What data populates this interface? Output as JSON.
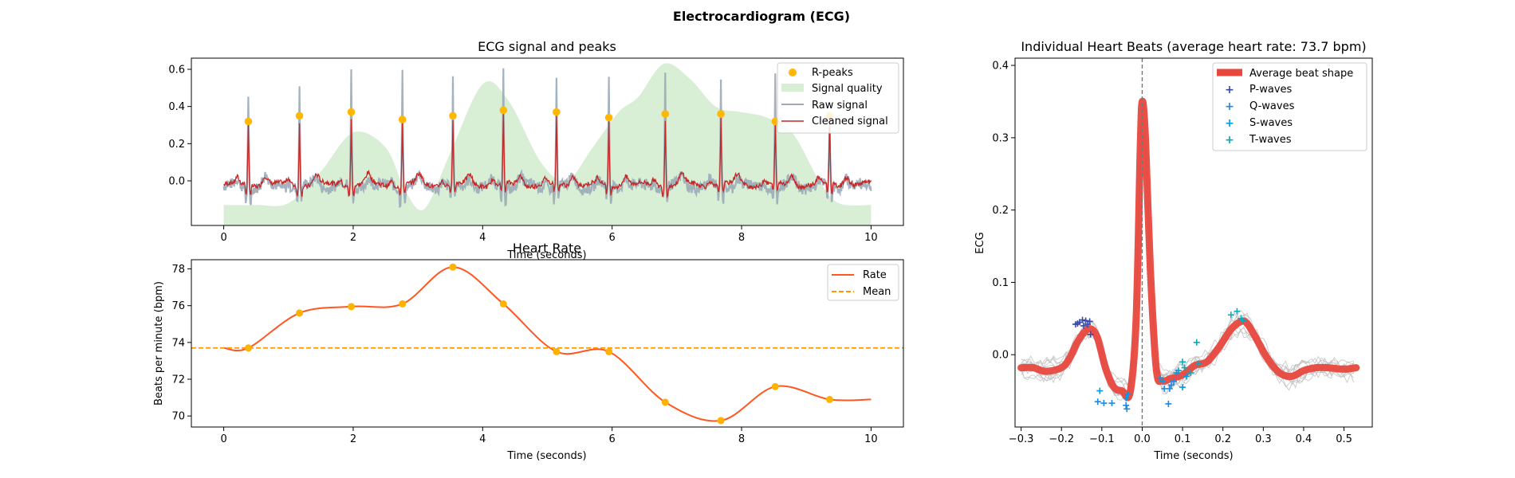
{
  "figure": {
    "suptitle": "Electrocardiogram (ECG)"
  },
  "colors": {
    "r_peaks": "#FFB703",
    "quality": "#D8EFD6",
    "raw": "#9BABB8",
    "cleaned": "#C62828",
    "rate": "#FF5722",
    "rate_peaks": "#FFB300",
    "mean": "#FF9800",
    "avg_beat": "#E8473E",
    "p_waves": "#3949AB",
    "q_waves": "#1E88E5",
    "s_waves": "#039BE5",
    "t_waves": "#00ACC1",
    "beats": "#BDBDBD"
  },
  "chart_data": [
    {
      "id": "ecg",
      "type": "line",
      "title": "ECG signal and peaks",
      "xlabel": "Time (seconds)",
      "ylabel": "",
      "xlim": [
        -0.5,
        10.5
      ],
      "ylim": [
        -0.24,
        0.66
      ],
      "xticks": [
        0,
        2,
        4,
        6,
        8,
        10
      ],
      "yticks": [
        0.0,
        0.2,
        0.4,
        0.6
      ],
      "ytick_labels": [
        "0.0",
        "0.2",
        "0.4",
        "0.6"
      ],
      "legend": [
        "R-peaks",
        "Signal quality",
        "Raw signal",
        "Cleaned signal"
      ],
      "legend_position": "upper right",
      "r_peaks": {
        "x": [
          0.38,
          1.17,
          1.97,
          2.76,
          3.54,
          4.32,
          5.14,
          5.95,
          6.82,
          7.68,
          8.52,
          9.36
        ],
        "y": [
          0.32,
          0.35,
          0.37,
          0.33,
          0.35,
          0.38,
          0.37,
          0.34,
          0.36,
          0.36,
          0.32,
          0.35
        ]
      },
      "raw_peak_y": [
        0.47,
        0.51,
        0.63,
        0.62,
        0.55,
        0.62,
        0.58,
        0.59,
        0.61,
        0.59,
        0.6,
        0.36
      ],
      "signal_quality": {
        "x": [
          0.0,
          0.5,
          1.0,
          1.5,
          2.0,
          2.5,
          2.8,
          3.1,
          3.5,
          4.0,
          4.4,
          4.9,
          5.3,
          5.7,
          6.1,
          6.4,
          6.8,
          7.2,
          7.6,
          8.0,
          8.4,
          8.8,
          9.2,
          9.5,
          10.0
        ],
        "y": [
          -0.13,
          -0.13,
          -0.12,
          0.05,
          0.26,
          0.18,
          -0.05,
          -0.15,
          0.15,
          0.52,
          0.43,
          0.1,
          0.0,
          0.18,
          0.37,
          0.45,
          0.63,
          0.55,
          0.4,
          0.37,
          0.34,
          0.25,
          0.0,
          -0.12,
          -0.13
        ]
      }
    },
    {
      "id": "hr",
      "type": "line",
      "title": "Heart Rate",
      "xlabel": "Time (seconds)",
      "ylabel": "Beats per minute (bpm)",
      "xlim": [
        -0.5,
        10.5
      ],
      "ylim": [
        69.4,
        78.5
      ],
      "xticks": [
        0,
        2,
        4,
        6,
        8,
        10
      ],
      "yticks": [
        70,
        72,
        74,
        76,
        78
      ],
      "legend": [
        "Rate",
        "Mean"
      ],
      "legend_position": "upper right",
      "mean": 73.7,
      "x": [
        0.0,
        0.38,
        1.17,
        1.97,
        2.76,
        3.54,
        4.32,
        5.14,
        5.95,
        6.82,
        7.68,
        8.52,
        9.36,
        10.0
      ],
      "y": [
        73.7,
        73.7,
        75.6,
        75.95,
        76.1,
        78.1,
        76.1,
        73.5,
        73.5,
        70.75,
        69.75,
        71.6,
        70.9,
        70.9
      ],
      "peak_x": [
        0.38,
        1.17,
        1.97,
        2.76,
        3.54,
        4.32,
        5.14,
        5.95,
        6.82,
        7.68,
        8.52,
        9.36
      ],
      "peak_y": [
        73.7,
        75.6,
        75.95,
        76.1,
        78.1,
        76.1,
        73.5,
        73.5,
        70.75,
        69.75,
        71.6,
        70.9
      ]
    },
    {
      "id": "beats",
      "type": "line",
      "title": "Individual Heart Beats (average heart rate: 73.7 bpm)",
      "xlabel": "Time (seconds)",
      "ylabel": "ECG",
      "xlim": [
        -0.315,
        0.57
      ],
      "ylim": [
        -0.1,
        0.41
      ],
      "xticks": [
        -0.3,
        -0.2,
        -0.1,
        0.0,
        0.1,
        0.2,
        0.3,
        0.4,
        0.5
      ],
      "xtick_labels": [
        "−0.3",
        "−0.2",
        "−0.1",
        "0.0",
        "0.1",
        "0.2",
        "0.3",
        "0.4",
        "0.5"
      ],
      "yticks": [
        0.0,
        0.1,
        0.2,
        0.3,
        0.4
      ],
      "ytick_labels": [
        "0.0",
        "0.1",
        "0.2",
        "0.3",
        "0.4"
      ],
      "legend": [
        "Average beat shape",
        "P-waves",
        "Q-waves",
        "S-waves",
        "T-waves"
      ],
      "legend_position": "upper right",
      "avg_beat": {
        "x": [
          -0.3,
          -0.27,
          -0.24,
          -0.2,
          -0.18,
          -0.16,
          -0.14,
          -0.125,
          -0.11,
          -0.09,
          -0.07,
          -0.05,
          -0.03,
          -0.015,
          -0.005,
          0.0,
          0.008,
          0.02,
          0.035,
          0.05,
          0.07,
          0.1,
          0.13,
          0.16,
          0.19,
          0.22,
          0.245,
          0.26,
          0.28,
          0.31,
          0.34,
          0.37,
          0.4,
          0.43,
          0.46,
          0.5,
          0.53
        ],
        "y": [
          -0.018,
          -0.018,
          -0.023,
          -0.018,
          -0.005,
          0.018,
          0.033,
          0.035,
          0.022,
          -0.02,
          -0.045,
          -0.05,
          -0.052,
          0.05,
          0.28,
          0.35,
          0.3,
          0.12,
          -0.02,
          -0.036,
          -0.033,
          -0.028,
          -0.015,
          -0.01,
          0.01,
          0.035,
          0.046,
          0.043,
          0.025,
          -0.005,
          -0.025,
          -0.03,
          -0.022,
          -0.018,
          -0.018,
          -0.02,
          -0.018
        ]
      },
      "p_waves": {
        "x": [
          -0.165,
          -0.155,
          -0.148,
          -0.14,
          -0.135,
          -0.13,
          -0.128,
          -0.145,
          -0.16
        ],
        "y": [
          0.042,
          0.045,
          0.048,
          0.047,
          0.042,
          0.046,
          0.028,
          0.04,
          0.043
        ]
      },
      "q_waves": {
        "x": [
          -0.11,
          -0.095,
          -0.075,
          -0.04,
          -0.038,
          0.055,
          0.068,
          0.078,
          0.065,
          0.072
        ],
        "y": [
          -0.065,
          -0.067,
          -0.067,
          -0.07,
          -0.075,
          -0.047,
          -0.047,
          -0.037,
          -0.068,
          -0.042
        ]
      },
      "s_waves": {
        "x": [
          -0.105,
          -0.035,
          -0.04,
          0.045,
          0.05,
          0.085,
          0.09,
          0.1,
          0.11
        ],
        "y": [
          -0.05,
          -0.055,
          -0.06,
          -0.033,
          -0.037,
          -0.025,
          -0.022,
          -0.045,
          -0.03
        ]
      },
      "t_waves": {
        "x": [
          0.1,
          0.105,
          0.12,
          0.135,
          0.14,
          0.22,
          0.235,
          0.245,
          0.25
        ],
        "y": [
          -0.01,
          -0.018,
          -0.025,
          0.017,
          -0.012,
          0.055,
          0.06,
          0.05,
          0.047
        ]
      }
    }
  ]
}
